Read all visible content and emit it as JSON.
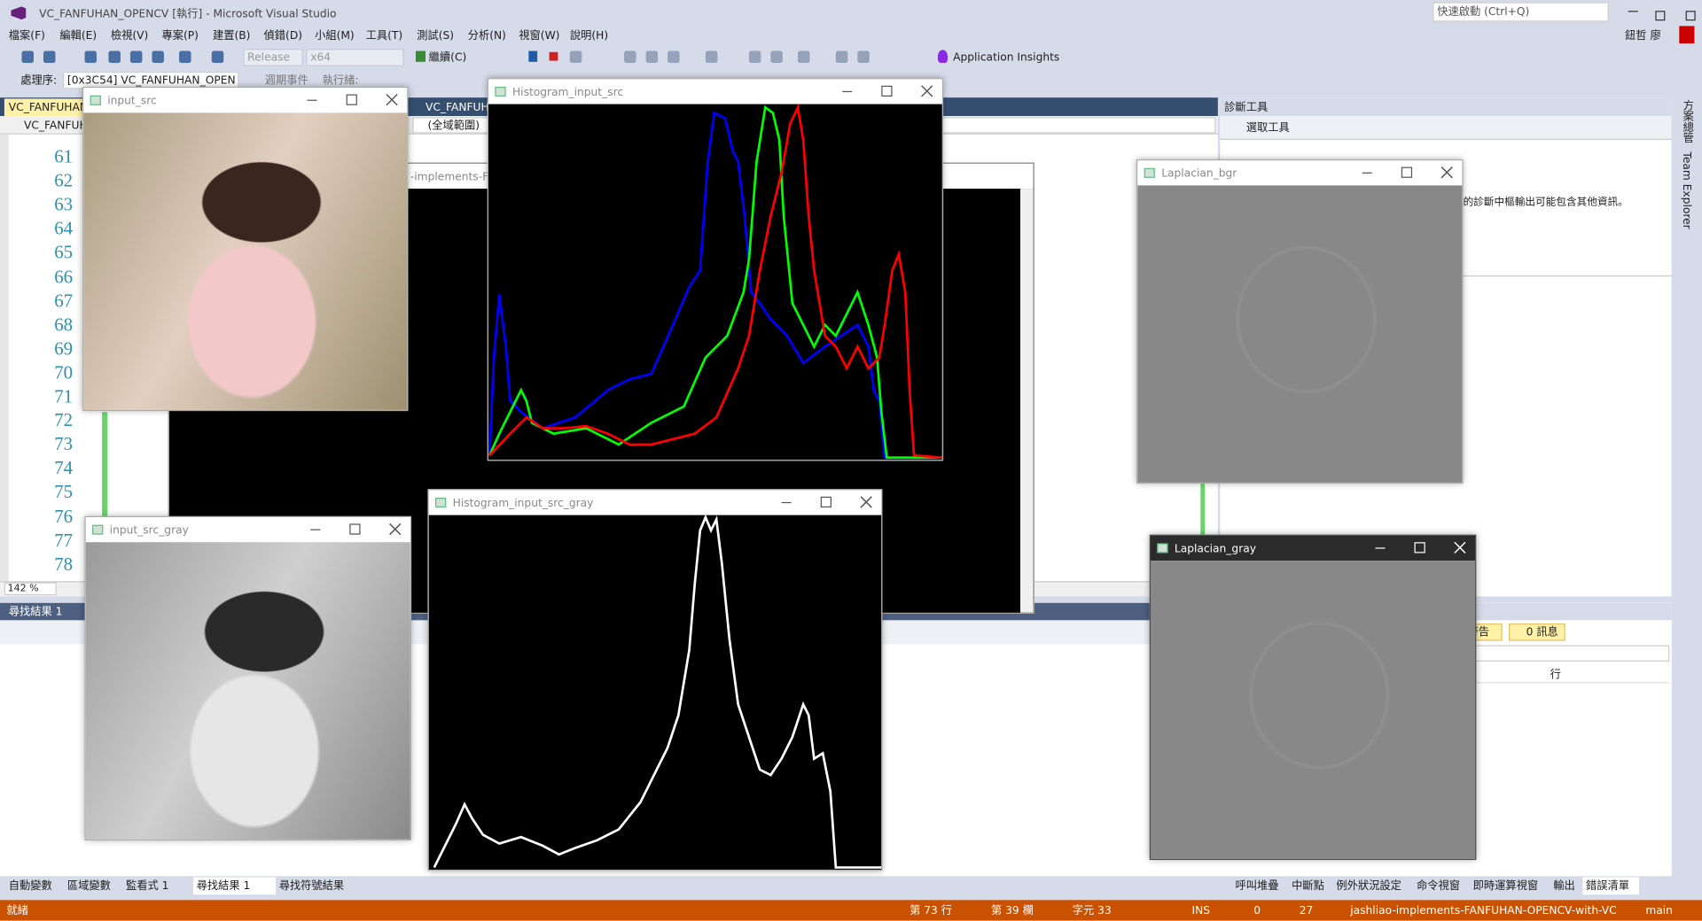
{
  "title_bar": {
    "title": "VC_FANFUHAN_OPENCV [執行] - Microsoft Visual Studio",
    "quick_launch": "快速啟動 (Ctrl+Q)",
    "user": "鈕哲 廖"
  },
  "menu": [
    "檔案(F)",
    "編輯(E)",
    "檢視(V)",
    "專案(P)",
    "建置(B)",
    "偵錯(D)",
    "小組(M)",
    "工具(T)",
    "測試(S)",
    "分析(N)",
    "視窗(W)",
    "說明(H)"
  ],
  "toolbar": {
    "configuration": "Release",
    "platform": "x64",
    "continue": "繼續(C)",
    "insights": "Application Insights"
  },
  "debug_bar": {
    "process_label": "處理序:",
    "process": "[0x3C54] VC_FANFUHAN_OPEN",
    "lifecycle": "週期事件",
    "thread_label": "執行緒:"
  },
  "editor": {
    "tab": "VC_FANFUHAN",
    "tab2": "VC_FANFUH",
    "project": "VC_FANFUH",
    "scope": "(全域範圍)",
    "line_numbers": [
      "61",
      "62",
      "63",
      "64",
      "65",
      "66",
      "67",
      "68",
      "69",
      "70",
      "71",
      "72",
      "73",
      "74",
      "75",
      "76",
      "77",
      "78"
    ],
    "zoom": "142 %"
  },
  "console_title": "-implements-FA",
  "diagnostics": {
    "title": "診斷工具",
    "select_tool": "選取工具",
    "message": "的診斷中樞輸出可能包含其他資訊。"
  },
  "side_tabs": [
    "方案總管",
    "Team Explorer"
  ],
  "find_results": {
    "title": "尋找結果 1"
  },
  "error_list": {
    "warnings": "警告",
    "messages": "0 訊息",
    "column": "行"
  },
  "bottom_tabs_left": [
    "自動變數",
    "區域變數",
    "監看式 1",
    "尋找結果 1",
    "尋找符號結果"
  ],
  "bottom_tabs_right": [
    "呼叫堆疊",
    "中斷點",
    "例外狀況設定",
    "命令視窗",
    "即時運算視窗",
    "輸出",
    "錯誤清單"
  ],
  "status_bar": {
    "ready": "就緒",
    "line": "第 73 行",
    "column": "第 39 欄",
    "char": "字元 33",
    "mode": "INS",
    "errors": "0",
    "changes": "27",
    "repo": "jashliao-implements-FANFUHAN-OPENCV-with-VC",
    "branch": "main"
  },
  "windows": [
    {
      "title": "input_src"
    },
    {
      "title": "Histogram_input_src"
    },
    {
      "title": "Laplacian_bgr"
    },
    {
      "title": "input_src_gray"
    },
    {
      "title": "Histogram_input_src_gray"
    },
    {
      "title": "Laplacian_gray"
    }
  ]
}
